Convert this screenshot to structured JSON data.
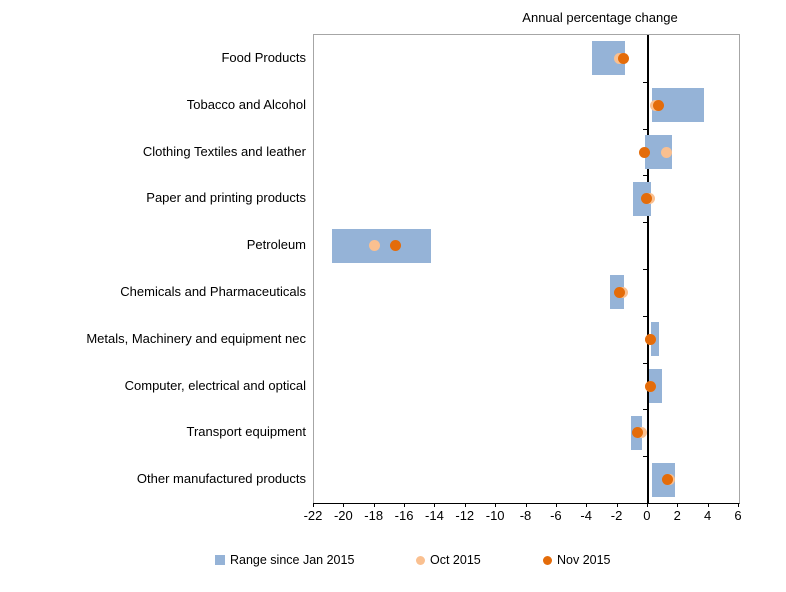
{
  "title": "Annual percentage change",
  "colors": {
    "range_bar": "#95B3D7",
    "oct": "#FAC090",
    "nov": "#E46C0A",
    "plot_border": "#A6A6A6",
    "axis": "#000000"
  },
  "legend": [
    {
      "label": "Range since Jan 2015",
      "marker": "square",
      "color_key": "range_bar"
    },
    {
      "label": "Oct 2015",
      "marker": "circle",
      "color_key": "oct"
    },
    {
      "label": "Nov 2015",
      "marker": "circle",
      "color_key": "nov"
    }
  ],
  "chart_data": {
    "type": "bar",
    "orientation": "horizontal",
    "title": "Annual percentage change",
    "xlabel": "",
    "ylabel": "",
    "xlim": [
      -22,
      6
    ],
    "x_ticks": [
      -22,
      -20,
      -18,
      -16,
      -14,
      -12,
      -10,
      -8,
      -6,
      -4,
      -2,
      0,
      2,
      4,
      6
    ],
    "grid": false,
    "legend_position": "bottom",
    "categories": [
      "Food Products",
      "Tobacco and Alcohol",
      "Clothing Textiles and leather",
      "Paper and printing products",
      "Petroleum",
      "Chemicals and Pharmaceuticals",
      "Metals, Machinery and equipment nec",
      "Computer, electrical and optical",
      "Transport equipment",
      "Other manufactured products"
    ],
    "series": [
      {
        "name": "Range since Jan 2015",
        "type": "range_bar",
        "low": [
          -3.7,
          0.3,
          -0.2,
          -1.0,
          -20.8,
          -2.5,
          0.2,
          0.1,
          -1.1,
          0.3
        ],
        "high": [
          -1.5,
          3.7,
          1.6,
          0.2,
          -14.3,
          -1.6,
          0.7,
          0.9,
          -0.4,
          1.8
        ]
      },
      {
        "name": "Oct 2015",
        "type": "point",
        "values": [
          -1.9,
          0.5,
          1.2,
          0.1,
          -18.0,
          -1.7,
          0.2,
          0.2,
          -0.4,
          1.4
        ]
      },
      {
        "name": "Nov 2015",
        "type": "point",
        "values": [
          -1.6,
          0.7,
          -0.2,
          -0.1,
          -16.6,
          -1.9,
          0.2,
          0.2,
          -0.7,
          1.3
        ]
      }
    ]
  }
}
